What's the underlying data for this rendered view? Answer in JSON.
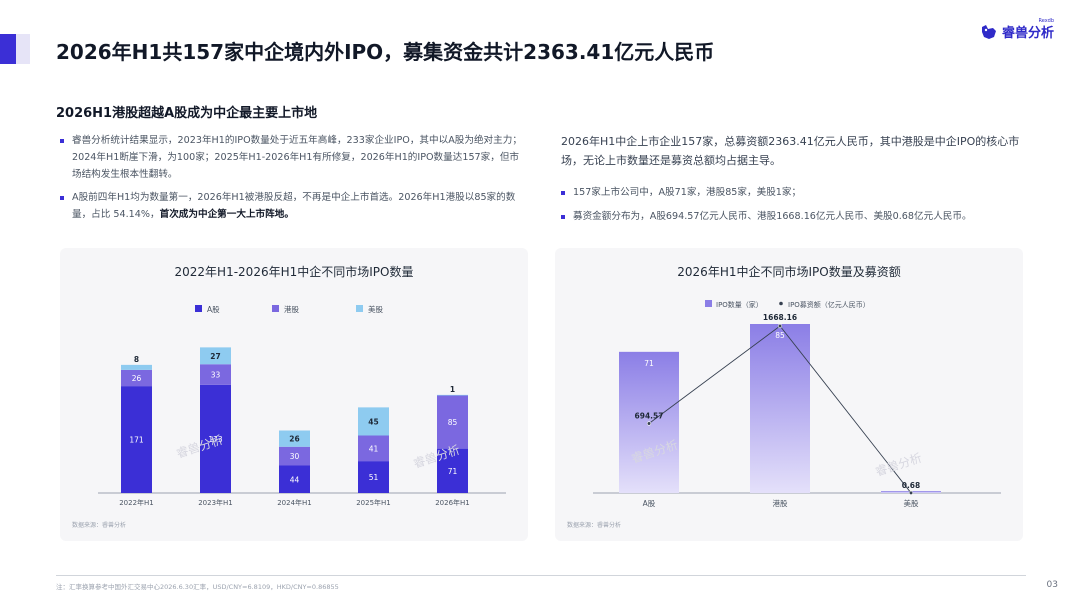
{
  "header": {
    "title": "2026年H1共157家中企境内外IPO，募集资金共计2363.41亿元人民币",
    "logo_text": "睿兽分析",
    "logo_small": "Rexdb"
  },
  "section": {
    "title": "2026H1港股超越A股成为中企最主要上市地"
  },
  "left_bullets": [
    {
      "text": "睿兽分析统计结果显示，2023年H1的IPO数量处于近五年高峰，233家企业IPO，其中以A股为绝对主力；2024年H1断崖下滑，为100家；2025年H1-2026年H1有所修复，2026年H1的IPO数量达157家，但市场结构发生根本性翻转。",
      "strong": ""
    },
    {
      "text": "A股前四年H1均为数量第一，2026年H1被港股反超，不再是中企上市首选。2026年H1港股以85家的数量，占比 54.14%，",
      "strong": "首次成为中企第一大上市阵地。"
    }
  ],
  "right_intro": "2026年H1中企上市企业157家，总募资额2363.41亿元人民币，其中港股是中企IPO的核心市场，无论上市数量还是募资总额均占据主导。",
  "right_bullets": [
    "157家上市公司中，A股71家，港股85家，美股1家；",
    "募资金额分布为，A股694.57亿元人民币、港股1668.16亿元人民币、美股0.68亿元人民币。"
  ],
  "chart_data": [
    {
      "type": "bar",
      "stacked": true,
      "title": "2022年H1-2026年H1中企不同市场IPO数量",
      "categories": [
        "2022年H1",
        "2023年H1",
        "2024年H1",
        "2025年H1",
        "2026年H1"
      ],
      "series": [
        {
          "name": "A股",
          "values": [
            171,
            173,
            44,
            51,
            71
          ],
          "color": "#3b2fd6"
        },
        {
          "name": "港股",
          "values": [
            26,
            33,
            30,
            41,
            85
          ],
          "color": "#7b68e0"
        },
        {
          "name": "美股",
          "values": [
            8,
            27,
            26,
            45,
            1
          ],
          "color": "#8ecbf0"
        }
      ],
      "legend_position": "top",
      "grid": false,
      "source": "数据来源：睿兽分析",
      "watermark": "睿兽分析"
    },
    {
      "type": "bar",
      "combo": true,
      "title": "2026年H1中企不同市场IPO数量及募资额",
      "categories": [
        "A股",
        "港股",
        "美股"
      ],
      "series": [
        {
          "name": "IPO数量（家）",
          "type": "bar",
          "values": [
            71,
            85,
            1
          ],
          "color": "#8b7ee6"
        },
        {
          "name": "IPO募资额（亿元人民币）",
          "type": "line",
          "values": [
            694.57,
            1668.16,
            0.68
          ],
          "color": "#374151"
        }
      ],
      "legend_position": "top",
      "grid": false,
      "source": "数据来源：睿兽分析",
      "watermark": "睿兽分析"
    }
  ],
  "footer": {
    "note": "注：汇率换算参考中国外汇交易中心2026.6.30汇率，USD/CNY=6.8109，HKD/CNY=0.86855",
    "page_number": "03"
  },
  "colors": {
    "accent": "#3b2fd6",
    "card_bg": "#f6f6f8"
  }
}
